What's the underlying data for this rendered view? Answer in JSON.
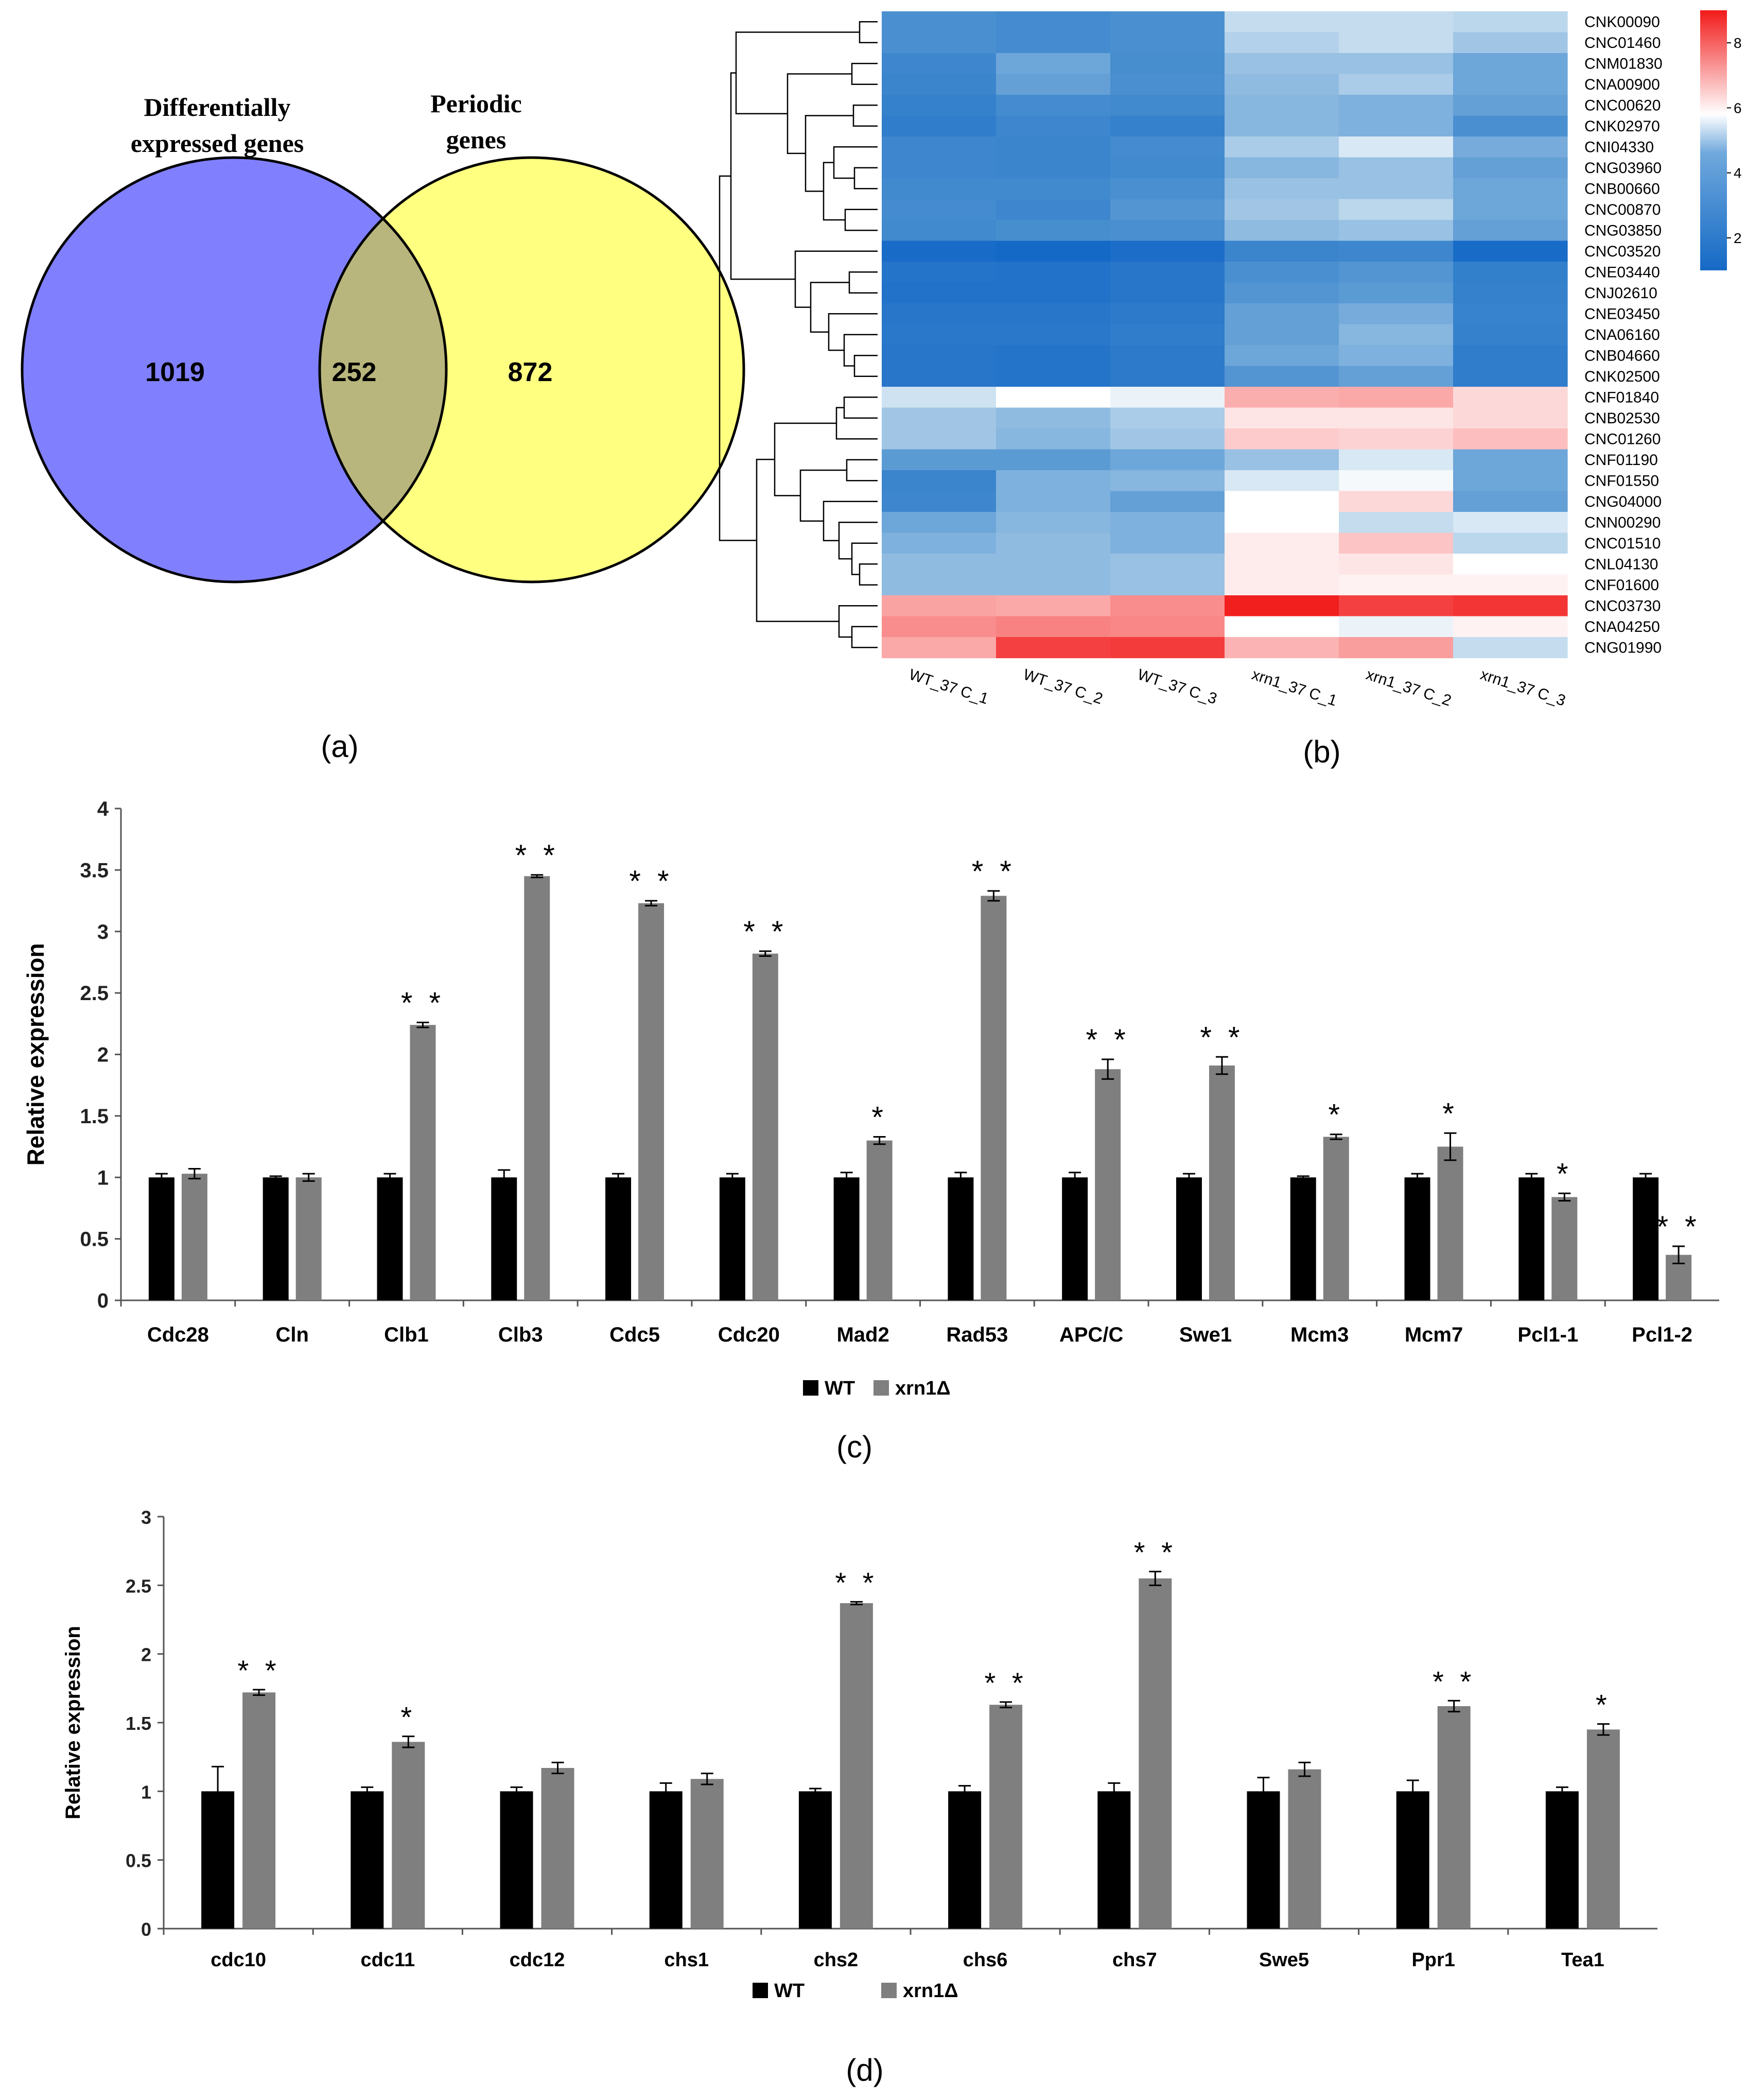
{
  "venn": {
    "left_title_1": "Differentially",
    "left_title_2": "expressed genes",
    "right_title_1": "Periodic",
    "right_title_2": "genes",
    "left_only": "1019",
    "overlap": "252",
    "right_only": "872",
    "label": "(a)",
    "colors": {
      "left": "#8080ff",
      "right": "#ffff80",
      "overlap": "#b8b67c"
    }
  },
  "heatmap": {
    "label": "(b)",
    "samples": [
      "WT_37 C_1",
      "WT_37 C_2",
      "WT_37 C_3",
      "xrn1_37 C_1",
      "xrn1_37 C_2",
      "xrn1_37 C_3"
    ],
    "genes": [
      "CNK00090",
      "CNC01460",
      "CNM01830",
      "CNA00900",
      "CNC00620",
      "CNK02970",
      "CNI04330",
      "CNG03960",
      "CNB00660",
      "CNC00870",
      "CNG03850",
      "CNC03520",
      "CNE03440",
      "CNJ02610",
      "CNE03450",
      "CNA06160",
      "CNB04660",
      "CNK02500",
      "CNF01840",
      "CNB02530",
      "CNC01260",
      "CNF01190",
      "CNF01550",
      "CNG04000",
      "CNN00290",
      "CNC01510",
      "CNL04130",
      "CNF01600",
      "CNC03730",
      "CNA04250",
      "CNG01990"
    ],
    "values": [
      [
        3.0,
        2.8,
        3.0,
        4.4,
        4.4,
        4.3
      ],
      [
        3.0,
        2.8,
        3.0,
        4.2,
        4.4,
        4.0
      ],
      [
        2.6,
        3.4,
        2.9,
        3.9,
        3.9,
        3.4
      ],
      [
        2.5,
        3.3,
        3.0,
        3.8,
        4.1,
        3.4
      ],
      [
        2.3,
        2.8,
        2.7,
        3.7,
        3.6,
        3.3
      ],
      [
        2.1,
        2.6,
        2.3,
        3.7,
        3.6,
        3.0
      ],
      [
        2.6,
        2.5,
        2.8,
        4.1,
        4.6,
        3.5
      ],
      [
        2.6,
        2.5,
        2.7,
        3.7,
        3.9,
        3.3
      ],
      [
        2.7,
        2.7,
        3.0,
        3.9,
        3.9,
        3.4
      ],
      [
        2.8,
        2.6,
        3.1,
        4.0,
        4.3,
        3.4
      ],
      [
        2.7,
        2.9,
        3.0,
        3.8,
        3.9,
        3.3
      ],
      [
        1.3,
        1.2,
        1.4,
        2.5,
        2.6,
        1.3
      ],
      [
        1.7,
        1.6,
        1.8,
        3.0,
        3.1,
        2.2
      ],
      [
        1.6,
        1.6,
        1.8,
        3.1,
        3.2,
        2.3
      ],
      [
        1.8,
        1.8,
        2.0,
        3.3,
        3.5,
        2.4
      ],
      [
        1.9,
        1.9,
        2.1,
        3.3,
        3.7,
        2.3
      ],
      [
        1.8,
        1.7,
        2.0,
        3.4,
        3.6,
        2.1
      ],
      [
        1.8,
        1.7,
        2.0,
        3.1,
        3.3,
        2.1
      ],
      [
        4.5,
        5.0,
        4.8,
        6.3,
        6.4,
        5.6
      ],
      [
        4.0,
        3.8,
        4.1,
        5.4,
        5.4,
        5.6
      ],
      [
        4.0,
        3.7,
        4.0,
        5.8,
        5.7,
        6.0
      ],
      [
        3.2,
        3.2,
        3.4,
        3.9,
        4.6,
        3.4
      ],
      [
        2.5,
        3.6,
        3.7,
        4.6,
        4.9,
        3.4
      ],
      [
        2.6,
        3.6,
        3.3,
        5.0,
        5.6,
        3.3
      ],
      [
        3.4,
        3.7,
        3.6,
        5.0,
        4.4,
        4.6
      ],
      [
        3.6,
        3.8,
        3.6,
        5.3,
        5.9,
        4.3
      ],
      [
        3.8,
        3.8,
        3.9,
        5.3,
        5.4,
        5.0
      ],
      [
        3.8,
        3.8,
        3.9,
        5.3,
        5.2,
        5.2
      ],
      [
        6.5,
        6.4,
        6.9,
        8.9,
        8.3,
        8.5
      ],
      [
        6.9,
        7.1,
        7.0,
        5.0,
        4.8,
        5.2
      ],
      [
        6.4,
        8.3,
        8.4,
        6.2,
        6.6,
        4.4
      ]
    ],
    "colorbar_ticks": [
      "8",
      "6",
      "4",
      "2"
    ]
  },
  "chart_data": [
    {
      "type": "bar",
      "panel": "(c)",
      "title": "",
      "xlabel": "",
      "ylabel": "Relative expression",
      "ylim": [
        0,
        4
      ],
      "yticks": [
        "0",
        "0.5",
        "1",
        "1.5",
        "2",
        "2.5",
        "3",
        "3.5",
        "4"
      ],
      "categories": [
        "Cdc28",
        "Cln",
        "Clb1",
        "Clb3",
        "Cdc5",
        "Cdc20",
        "Mad2",
        "Rad53",
        "APC/C",
        "Swe1",
        "Mcm3",
        "Mcm7",
        "Pcl1-1",
        "Pcl1-2"
      ],
      "series": [
        {
          "name": "WT",
          "color": "#000000",
          "values": [
            1,
            1,
            1,
            1,
            1,
            1,
            1,
            1,
            1,
            1,
            1,
            1,
            1,
            1
          ],
          "errors": [
            0.03,
            0.01,
            0.03,
            0.06,
            0.03,
            0.03,
            0.04,
            0.04,
            0.04,
            0.03,
            0.01,
            0.03,
            0.03,
            0.03
          ]
        },
        {
          "name": "xrn1Δ",
          "color": "#7f7f7f",
          "values": [
            1.03,
            1.0,
            2.24,
            3.45,
            3.23,
            2.82,
            1.3,
            3.29,
            1.88,
            1.91,
            1.33,
            1.25,
            0.84,
            0.37
          ],
          "errors": [
            0.04,
            0.03,
            0.02,
            0.01,
            0.02,
            0.02,
            0.03,
            0.04,
            0.08,
            0.07,
            0.02,
            0.11,
            0.03,
            0.07
          ]
        }
      ],
      "significance": [
        "",
        "",
        "**",
        "**",
        "**",
        "**",
        "*",
        "**",
        "**",
        "**",
        "*",
        "*",
        "*",
        "**"
      ]
    },
    {
      "type": "bar",
      "panel": "(d)",
      "title": "",
      "xlabel": "",
      "ylabel": "Relative expression",
      "ylim": [
        0,
        3
      ],
      "yticks": [
        "0",
        "0.5",
        "1",
        "1.5",
        "2",
        "2.5",
        "3"
      ],
      "categories": [
        "cdc10",
        "cdc11",
        "cdc12",
        "chs1",
        "chs2",
        "chs6",
        "chs7",
        "Swe5",
        "Ppr1",
        "Tea1"
      ],
      "series": [
        {
          "name": "WT",
          "color": "#000000",
          "values": [
            1,
            1,
            1,
            1,
            1,
            1,
            1,
            1,
            1,
            1
          ],
          "errors": [
            0.18,
            0.03,
            0.03,
            0.06,
            0.02,
            0.04,
            0.06,
            0.1,
            0.08,
            0.03
          ]
        },
        {
          "name": "xrn1Δ",
          "color": "#7f7f7f",
          "values": [
            1.72,
            1.36,
            1.17,
            1.09,
            2.37,
            1.63,
            2.55,
            1.16,
            1.62,
            1.45
          ],
          "errors": [
            0.02,
            0.04,
            0.04,
            0.04,
            0.01,
            0.02,
            0.05,
            0.05,
            0.04,
            0.04
          ]
        }
      ],
      "significance": [
        "**",
        "*",
        "",
        "",
        "**",
        "**",
        "**",
        "",
        "**",
        "*"
      ]
    }
  ]
}
